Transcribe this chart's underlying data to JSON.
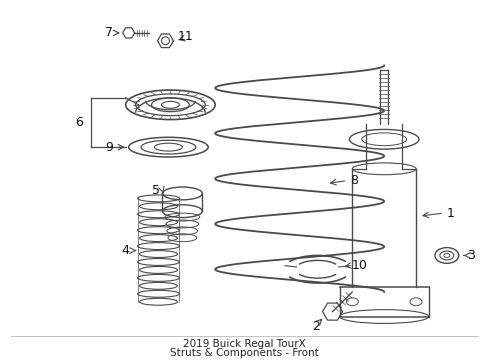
{
  "title": "2019 Buick Regal TourX\nStruts & Components - Front",
  "background_color": "#ffffff",
  "line_color": "#4a4a4a",
  "figsize": [
    4.89,
    3.6
  ],
  "dpi": 100,
  "title_fontsize": 7.5,
  "label_fontsize": 9
}
